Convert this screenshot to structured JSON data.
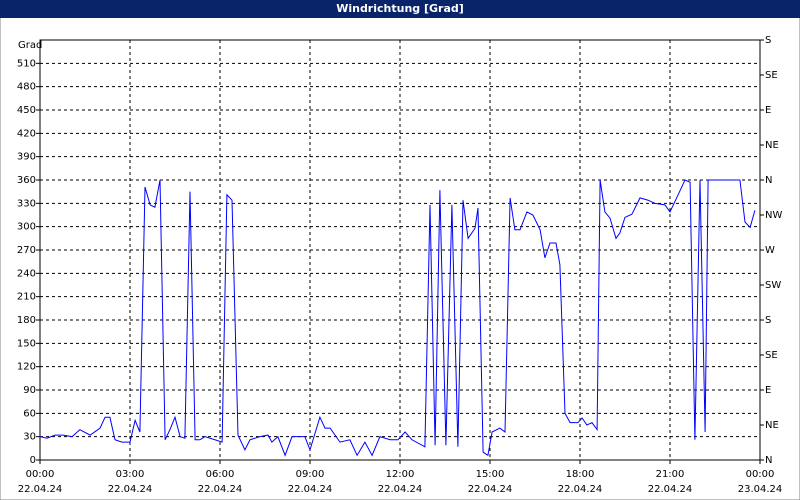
{
  "chart_data": {
    "type": "line",
    "title": "Windrichtung [Grad]",
    "y_label": "Grad",
    "xlim": [
      0,
      24
    ],
    "xticks": [
      {
        "value": 0,
        "label": "00:00"
      },
      {
        "value": 3,
        "label": "03:00"
      },
      {
        "value": 6,
        "label": "06:00"
      },
      {
        "value": 9,
        "label": "09:00"
      },
      {
        "value": 12,
        "label": "12:00"
      },
      {
        "value": 15,
        "label": "15:00"
      },
      {
        "value": 18,
        "label": "18:00"
      },
      {
        "value": 21,
        "label": "21:00"
      },
      {
        "value": 24,
        "label": "00:00"
      }
    ],
    "xtick_dates": [
      "22.04.24",
      "22.04.24",
      "22.04.24",
      "22.04.24",
      "22.04.24",
      "22.04.24",
      "22.04.24",
      "22.04.24",
      "23.04.24"
    ],
    "ylim": [
      0,
      540
    ],
    "yticks": [
      0,
      30,
      60,
      90,
      120,
      150,
      180,
      210,
      240,
      270,
      300,
      330,
      360,
      390,
      420,
      450,
      480,
      510
    ],
    "y2lim": [
      0,
      540
    ],
    "y2ticks": [
      {
        "value": 0,
        "label": "N"
      },
      {
        "value": 45,
        "label": "NE"
      },
      {
        "value": 90,
        "label": "E"
      },
      {
        "value": 135,
        "label": "SE"
      },
      {
        "value": 180,
        "label": "S"
      },
      {
        "value": 225,
        "label": "SW"
      },
      {
        "value": 270,
        "label": "W"
      },
      {
        "value": 315,
        "label": "NW"
      },
      {
        "value": 360,
        "label": "N"
      },
      {
        "value": 405,
        "label": "NE"
      },
      {
        "value": 450,
        "label": "E"
      },
      {
        "value": 495,
        "label": "SE"
      },
      {
        "value": 540,
        "label": "S"
      }
    ],
    "grid": true,
    "series": [
      {
        "color": "#0000ff",
        "x": [
          0,
          0.23,
          0.5,
          0.77,
          1.07,
          1.33,
          1.67,
          2,
          2.17,
          2.33,
          2.5,
          2.73,
          3,
          3.17,
          3.33,
          3.5,
          3.67,
          3.83,
          4,
          4.17,
          4.33,
          4.5,
          4.67,
          4.83,
          5,
          5.17,
          5.33,
          5.5,
          5.83,
          6.07,
          6.23,
          6.4,
          6.6,
          6.83,
          7,
          7.33,
          7.6,
          7.73,
          7.93,
          8.17,
          8.4,
          8.67,
          8.83,
          9,
          9.33,
          9.5,
          9.67,
          10,
          10.33,
          10.57,
          10.83,
          11.07,
          11.33,
          11.67,
          11.93,
          12.17,
          12.4,
          12.83,
          13,
          13.17,
          13.33,
          13.53,
          13.73,
          13.93,
          14.1,
          14.27,
          14.5,
          14.6,
          14.77,
          14.93,
          15.07,
          15.33,
          15.5,
          15.67,
          15.83,
          16,
          16.23,
          16.43,
          16.67,
          16.83,
          17,
          17.2,
          17.33,
          17.5,
          17.67,
          17.93,
          18.07,
          18.23,
          18.4,
          18.57,
          18.67,
          18.83,
          19,
          19.2,
          19.33,
          19.5,
          19.73,
          20,
          20.27,
          20.5,
          20.83,
          21,
          21.27,
          21.5,
          21.67,
          21.83,
          22,
          22.17,
          22.27,
          22.67,
          23.33,
          23.5,
          23.67,
          23.83
        ],
        "values": [
          30,
          28,
          32,
          32,
          30,
          39,
          32,
          41,
          55,
          55,
          26,
          23,
          23,
          51,
          36,
          351,
          328,
          325,
          360,
          26,
          39,
          55,
          30,
          28,
          345,
          26,
          26,
          30,
          26,
          23,
          341,
          334,
          32,
          13,
          26,
          30,
          32,
          23,
          30,
          6,
          30,
          30,
          30,
          13,
          55,
          41,
          41,
          23,
          26,
          6,
          23,
          6,
          30,
          26,
          26,
          36,
          26,
          17,
          328,
          19,
          347,
          19,
          328,
          17,
          334,
          285,
          298,
          324,
          10,
          6,
          36,
          41,
          36,
          337,
          296,
          296,
          319,
          315,
          296,
          260,
          279,
          279,
          251,
          60,
          48,
          48,
          54,
          45,
          48,
          39,
          360,
          319,
          311,
          285,
          292,
          312,
          316,
          337,
          334,
          330,
          328,
          319,
          341,
          360,
          357,
          26,
          360,
          36,
          360,
          360,
          360,
          306,
          299,
          321
        ]
      }
    ]
  }
}
